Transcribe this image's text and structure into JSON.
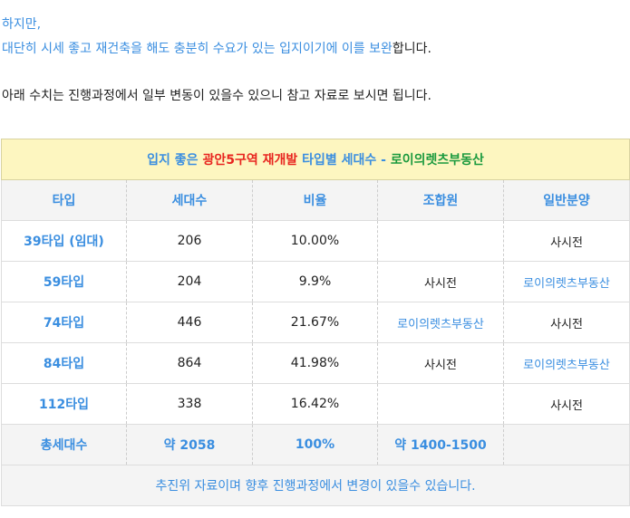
{
  "intro": {
    "line1": "하지만,",
    "line2_blue": "대단히 시세 좋고 재건축을 해도 충분히 수요가 있는 입지이기에 이를 보완",
    "line2_tail": "합니다.",
    "line3": "아래 수치는 진행과정에서 일부 변동이 있을수 있으니 참고 자료로 보시면 됩니다."
  },
  "table": {
    "title_part1": "입지 좋은 ",
    "title_part2": "광안5구역 재개발",
    "title_part3": " 타입별 세대수 - ",
    "title_part4": "로이의렛츠부동산",
    "headers": [
      "타입",
      "세대수",
      "비율",
      "조합원",
      "일반분양"
    ],
    "rows": [
      {
        "type": "39타입 (임대)",
        "count": "206",
        "ratio": "10.00%",
        "member": "",
        "general": "사시전"
      },
      {
        "type": "59타입",
        "count": "204",
        "ratio": "9.9%",
        "member": "사시전",
        "general": "로이의렛츠부동산"
      },
      {
        "type": "74타입",
        "count": "446",
        "ratio": "21.67%",
        "member": "로이의렛츠부동산",
        "general": "사시전"
      },
      {
        "type": "84타입",
        "count": "864",
        "ratio": "41.98%",
        "member": "사시전",
        "general": "로이의렛츠부동산"
      },
      {
        "type": "112타입",
        "count": "338",
        "ratio": "16.42%",
        "member": "",
        "general": "사시전"
      }
    ],
    "total": {
      "label": "총세대수",
      "count": "약 2058",
      "ratio": "100%",
      "member": "약 1400-1500",
      "general": ""
    },
    "footnote": "추진위 자료이며 향후 진행과정에서 변경이 있을수 있습니다."
  },
  "colors": {
    "accent": "#3a8ee0",
    "red": "#e8251f",
    "green": "#1b9a3e",
    "title_bg": "#fdf6c0"
  }
}
